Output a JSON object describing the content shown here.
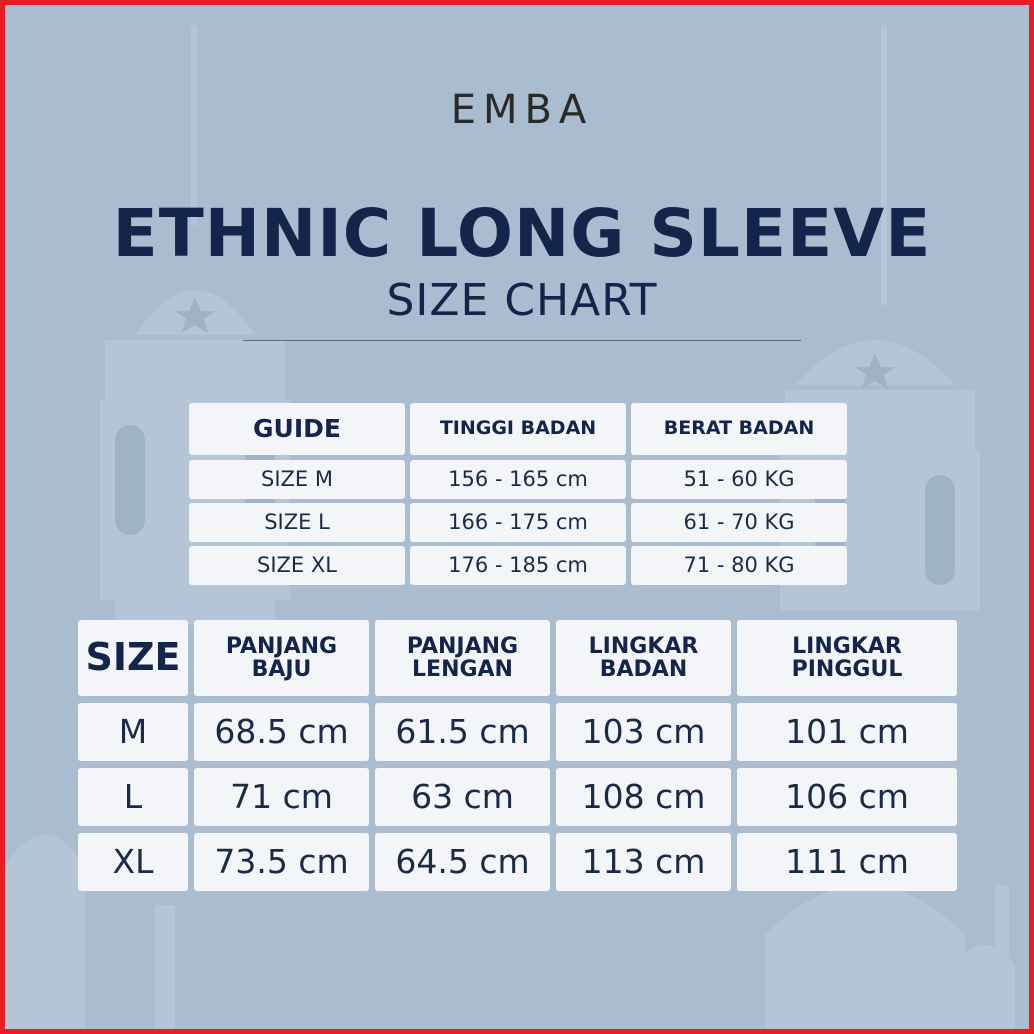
{
  "brand": "EMBA",
  "title": "ETHNIC LONG SLEEVE",
  "subtitle": "SIZE CHART",
  "colors": {
    "background": "#a9bcd0",
    "border": "#ec1c24",
    "cell": "#f4f5f8",
    "text": "#13254a"
  },
  "guide_table": {
    "headers": [
      "GUIDE",
      "TINGGI BADAN",
      "BERAT BADAN"
    ],
    "rows": [
      [
        "SIZE M",
        "156 - 165 cm",
        "51 - 60 KG"
      ],
      [
        "SIZE L",
        "166 - 175 cm",
        "61 - 70 KG"
      ],
      [
        "SIZE XL",
        "176 - 185 cm",
        "71 - 80 KG"
      ]
    ]
  },
  "size_table": {
    "headers": [
      "SIZE",
      "PANJANG BAJU",
      "PANJANG LENGAN",
      "LINGKAR BADAN",
      "LINGKAR PINGGUL"
    ],
    "rows": [
      [
        "M",
        "68.5 cm",
        "61.5 cm",
        "103 cm",
        "101 cm"
      ],
      [
        "L",
        "71 cm",
        "63 cm",
        "108 cm",
        "106 cm"
      ],
      [
        "XL",
        "73.5 cm",
        "64.5 cm",
        "113 cm",
        "111 cm"
      ]
    ]
  }
}
